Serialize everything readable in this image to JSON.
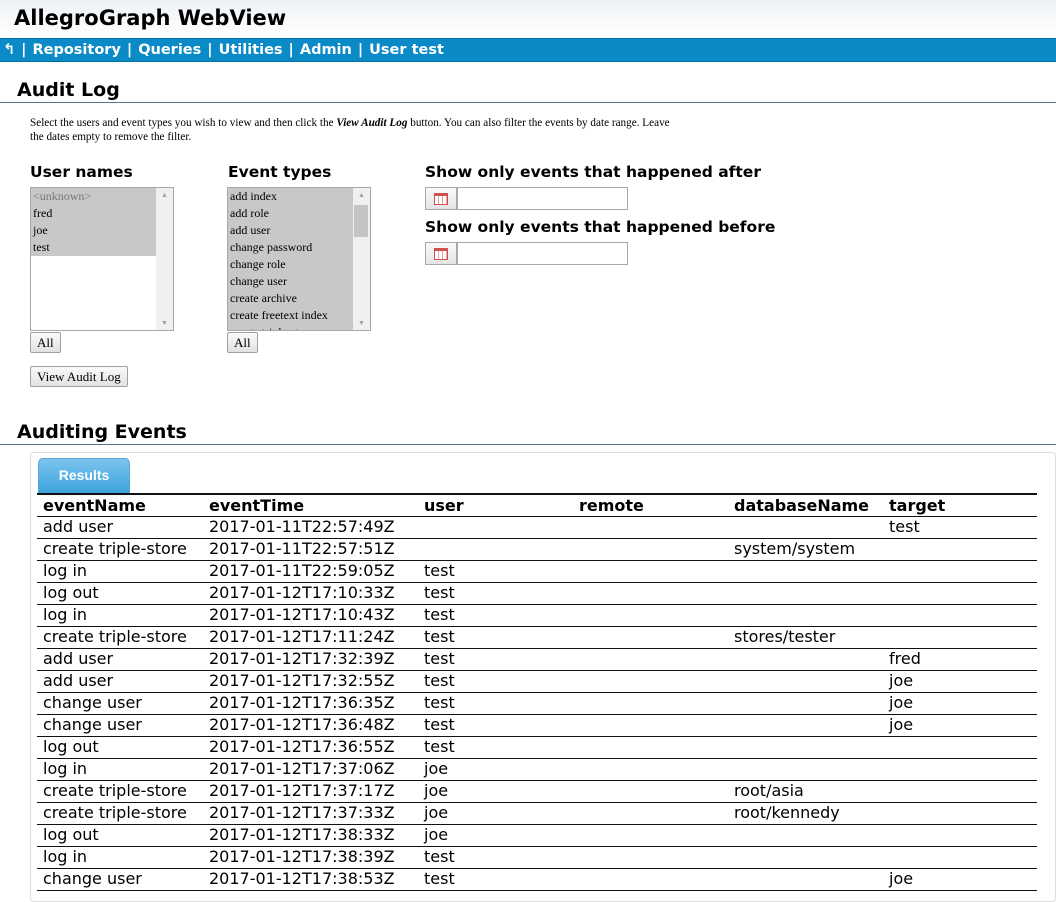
{
  "app_title": "AllegroGraph WebView",
  "nav": {
    "back_icon": "↰",
    "items": [
      "Repository",
      "Queries",
      "Utilities",
      "Admin",
      "User test"
    ]
  },
  "audit": {
    "heading": "Audit Log",
    "intro_pre": "Select the users and event types you wish to view and then click the ",
    "intro_em": "View Audit Log",
    "intro_post": " button. You can also filter the events by date range. Leave the dates empty to remove the filter.",
    "user_label": "User names",
    "users": [
      "<unknown>",
      "fred",
      "joe",
      "test"
    ],
    "event_label": "Event types",
    "events": [
      "add index",
      "add role",
      "add user",
      "change password",
      "change role",
      "change user",
      "create archive",
      "create freetext index",
      "create triple-store"
    ],
    "all_label": "All",
    "view_button": "View Audit Log",
    "after_label": "Show only events that happened after",
    "before_label": "Show only events that happened before",
    "after_value": "",
    "before_value": ""
  },
  "events": {
    "heading": "Auditing Events",
    "tab": "Results",
    "columns": [
      "eventName",
      "eventTime",
      "user",
      "remote",
      "databaseName",
      "target"
    ],
    "rows": [
      [
        "add user",
        "2017-01-11T22:57:49Z",
        "",
        "",
        "",
        "test"
      ],
      [
        "create triple-store",
        "2017-01-11T22:57:51Z",
        "",
        "",
        "system/system",
        ""
      ],
      [
        "log in",
        "2017-01-11T22:59:05Z",
        "test",
        "",
        "",
        ""
      ],
      [
        "log out",
        "2017-01-12T17:10:33Z",
        "test",
        "",
        "",
        ""
      ],
      [
        "log in",
        "2017-01-12T17:10:43Z",
        "test",
        "",
        "",
        ""
      ],
      [
        "create triple-store",
        "2017-01-12T17:11:24Z",
        "test",
        "",
        "stores/tester",
        ""
      ],
      [
        "add user",
        "2017-01-12T17:32:39Z",
        "test",
        "",
        "",
        "fred"
      ],
      [
        "add user",
        "2017-01-12T17:32:55Z",
        "test",
        "",
        "",
        "joe"
      ],
      [
        "change user",
        "2017-01-12T17:36:35Z",
        "test",
        "",
        "",
        "joe"
      ],
      [
        "change user",
        "2017-01-12T17:36:48Z",
        "test",
        "",
        "",
        "joe"
      ],
      [
        "log out",
        "2017-01-12T17:36:55Z",
        "test",
        "",
        "",
        ""
      ],
      [
        "log in",
        "2017-01-12T17:37:06Z",
        "joe",
        "",
        "",
        ""
      ],
      [
        "create triple-store",
        "2017-01-12T17:37:17Z",
        "joe",
        "",
        "root/asia",
        ""
      ],
      [
        "create triple-store",
        "2017-01-12T17:37:33Z",
        "joe",
        "",
        "root/kennedy",
        ""
      ],
      [
        "log out",
        "2017-01-12T17:38:33Z",
        "joe",
        "",
        "",
        ""
      ],
      [
        "log in",
        "2017-01-12T17:38:39Z",
        "test",
        "",
        "",
        ""
      ],
      [
        "change user",
        "2017-01-12T17:38:53Z",
        "test",
        "",
        "",
        "joe"
      ]
    ]
  }
}
